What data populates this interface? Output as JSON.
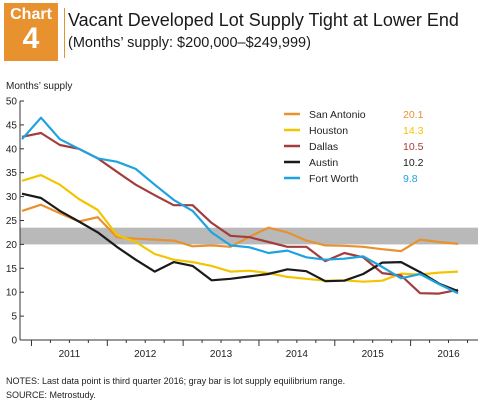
{
  "badge": {
    "word": "Chart",
    "number": "4"
  },
  "header": {
    "title": "Vacant Developed Lot Supply Tight at Lower End",
    "subtitle": "(Months’ supply: $200,000–$249,999)"
  },
  "notes": {
    "line1": "NOTES: Last data point is third quarter 2016; gray bar is lot supply equilibrium range.",
    "line2": "SOURCE: Metrostudy."
  },
  "chart_data": {
    "type": "line",
    "ylabel": "Months’ supply",
    "ylim": [
      0,
      50
    ],
    "yticks": [
      0,
      5,
      10,
      15,
      20,
      25,
      30,
      35,
      40,
      45,
      50
    ],
    "year_labels": [
      "2011",
      "2012",
      "2013",
      "2014",
      "2015",
      "2016"
    ],
    "x": [
      "2010 Q4",
      "2011 Q1",
      "2011 Q2",
      "2011 Q3",
      "2011 Q4",
      "2012 Q1",
      "2012 Q2",
      "2012 Q3",
      "2012 Q4",
      "2013 Q1",
      "2013 Q2",
      "2013 Q3",
      "2013 Q4",
      "2014 Q1",
      "2014 Q2",
      "2014 Q3",
      "2014 Q4",
      "2015 Q1",
      "2015 Q2",
      "2015 Q3",
      "2015 Q4",
      "2016 Q1",
      "2016 Q2",
      "2016 Q3"
    ],
    "equilibrium_band": [
      20,
      23.5
    ],
    "grid": false,
    "legend_position": "top-right",
    "series": [
      {
        "name": "San Antonio",
        "last_label": "20.1",
        "color": "#e8912f",
        "values": [
          27,
          28.3,
          26.5,
          24.8,
          25.7,
          21.5,
          21.2,
          21,
          20.8,
          19.6,
          19.8,
          19.5,
          21.6,
          23.5,
          22.5,
          20.8,
          19.8,
          19.7,
          19.5,
          19,
          18.6,
          21,
          20.5,
          20.1
        ]
      },
      {
        "name": "Houston",
        "last_label": "14.3",
        "color": "#f2c500",
        "values": [
          33.3,
          34.5,
          32.5,
          29.5,
          27.2,
          22,
          20.5,
          18,
          16.8,
          16.3,
          15.5,
          14.3,
          14.5,
          14,
          13.2,
          12.8,
          12.4,
          12.5,
          12.2,
          12.4,
          13.9,
          13.7,
          14.1,
          14.3
        ]
      },
      {
        "name": "Dallas",
        "last_label": "10.5",
        "color": "#a33d3d",
        "values": [
          42.5,
          43.3,
          40.8,
          40,
          38,
          35.2,
          32.5,
          30.3,
          28.2,
          28.2,
          24.5,
          21.8,
          21.5,
          20.5,
          19.5,
          19.5,
          16.5,
          18.2,
          17.3,
          14,
          13.5,
          9.8,
          9.7,
          10.5
        ]
      },
      {
        "name": "Austin",
        "last_label": "10.2",
        "color": "#1a1a1a",
        "values": [
          30.6,
          29.7,
          27,
          24.8,
          22.5,
          19.5,
          16.8,
          14.3,
          16.3,
          15.5,
          12.5,
          12.8,
          13.3,
          13.8,
          14.8,
          14.4,
          12.3,
          12.4,
          13.8,
          16.2,
          16.3,
          14.2,
          11.8,
          10.2
        ]
      },
      {
        "name": "Fort Worth",
        "last_label": "9.8",
        "color": "#1ea3e0",
        "values": [
          42,
          46.5,
          42,
          40,
          38,
          37.3,
          35.8,
          32.5,
          29.3,
          27,
          22.5,
          19.8,
          19.4,
          18.2,
          18.7,
          17.3,
          16.8,
          17,
          17.5,
          15.3,
          12.9,
          13.8,
          11.7,
          9.8
        ]
      }
    ]
  }
}
